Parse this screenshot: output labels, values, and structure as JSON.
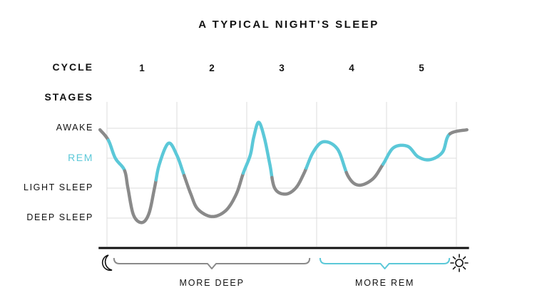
{
  "colors": {
    "deep": "#8a8a8a",
    "rem": "#5bc8d8",
    "axis": "#111111",
    "grid": "#dddddd",
    "text": "#111111"
  },
  "chart_data": {
    "type": "line",
    "title": "A TYPICAL NIGHT'S SLEEP",
    "cycle_heading": "CYCLE",
    "stages_heading": "STAGES",
    "cycles": [
      "1",
      "2",
      "3",
      "4",
      "5"
    ],
    "stages": [
      "AWAKE",
      "REM",
      "LIGHT SLEEP",
      "DEEP SLEEP"
    ],
    "stage_values": [
      3,
      2,
      1,
      0
    ],
    "rem_stage": "REM",
    "xlim": [
      0,
      5
    ],
    "ylim": [
      0,
      3
    ],
    "grid": true,
    "series": [
      {
        "points": [
          [
            -0.1,
            2.95
          ],
          [
            0.02,
            2.6
          ],
          [
            0.12,
            2.0
          ],
          [
            0.25,
            1.6
          ],
          [
            0.3,
            1.0
          ],
          [
            0.38,
            0.1
          ],
          [
            0.5,
            -0.15
          ],
          [
            0.6,
            0.15
          ],
          [
            0.68,
            1.0
          ],
          [
            0.75,
            1.8
          ],
          [
            0.88,
            2.5
          ],
          [
            1.0,
            2.1
          ],
          [
            1.1,
            1.45
          ],
          [
            1.2,
            0.8
          ],
          [
            1.3,
            0.3
          ],
          [
            1.5,
            0.05
          ],
          [
            1.7,
            0.25
          ],
          [
            1.85,
            0.8
          ],
          [
            1.95,
            1.5
          ],
          [
            2.05,
            2.1
          ],
          [
            2.1,
            2.7
          ],
          [
            2.17,
            3.2
          ],
          [
            2.25,
            2.7
          ],
          [
            2.33,
            1.8
          ],
          [
            2.4,
            1.0
          ],
          [
            2.55,
            0.8
          ],
          [
            2.7,
            1.0
          ],
          [
            2.82,
            1.5
          ],
          [
            2.95,
            2.2
          ],
          [
            3.1,
            2.55
          ],
          [
            3.3,
            2.3
          ],
          [
            3.45,
            1.4
          ],
          [
            3.6,
            1.1
          ],
          [
            3.8,
            1.3
          ],
          [
            3.95,
            1.8
          ],
          [
            4.1,
            2.35
          ],
          [
            4.3,
            2.4
          ],
          [
            4.45,
            2.05
          ],
          [
            4.62,
            1.95
          ],
          [
            4.8,
            2.2
          ],
          [
            4.9,
            2.8
          ],
          [
            5.15,
            2.95
          ]
        ],
        "rem_intervals": [
          [
            0.02,
            0.25
          ],
          [
            0.7,
            1.1
          ],
          [
            1.95,
            2.36
          ],
          [
            2.85,
            3.42
          ],
          [
            3.95,
            4.9
          ]
        ]
      }
    ],
    "braces": [
      {
        "label": "MORE DEEP",
        "from": 0.1,
        "to": 2.9,
        "color": "deep"
      },
      {
        "label": "MORE REM",
        "from": 3.05,
        "to": 4.9,
        "color": "rem"
      }
    ],
    "start_icon": "moon-icon",
    "end_icon": "sun-icon"
  }
}
